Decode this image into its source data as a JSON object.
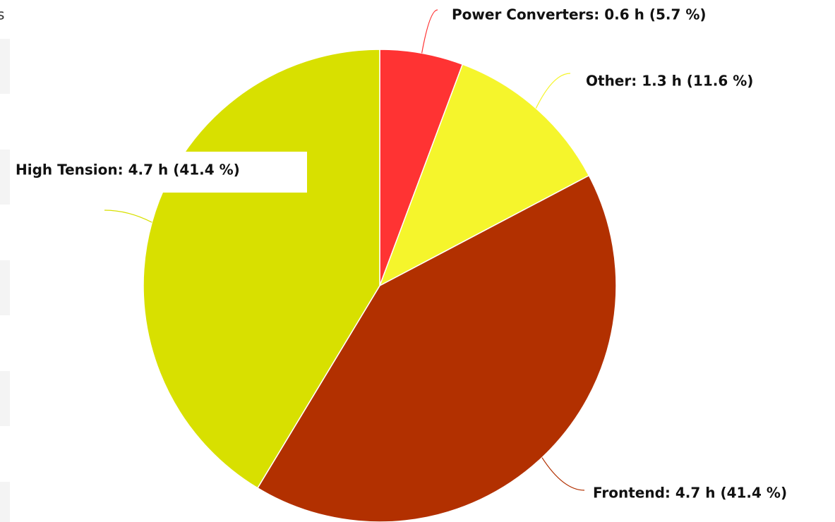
{
  "sidebar": {
    "text": "s"
  },
  "chart_data": {
    "type": "pie",
    "categories": [
      "Power Converters",
      "Other",
      "Frontend",
      "High Tension"
    ],
    "values": [
      5.7,
      11.6,
      41.4,
      41.4
    ],
    "value_labels": [
      "Power Converters: 0.6 h (5.7 %)",
      "Other: 1.3 h (11.6 %)",
      "Frontend: 4.7 h (41.4 %)",
      "High Tension: 4.7 h (41.4 %)"
    ],
    "colors": [
      "#ff3333",
      "#f5f52c",
      "#b23000",
      "#d8e000"
    ]
  }
}
